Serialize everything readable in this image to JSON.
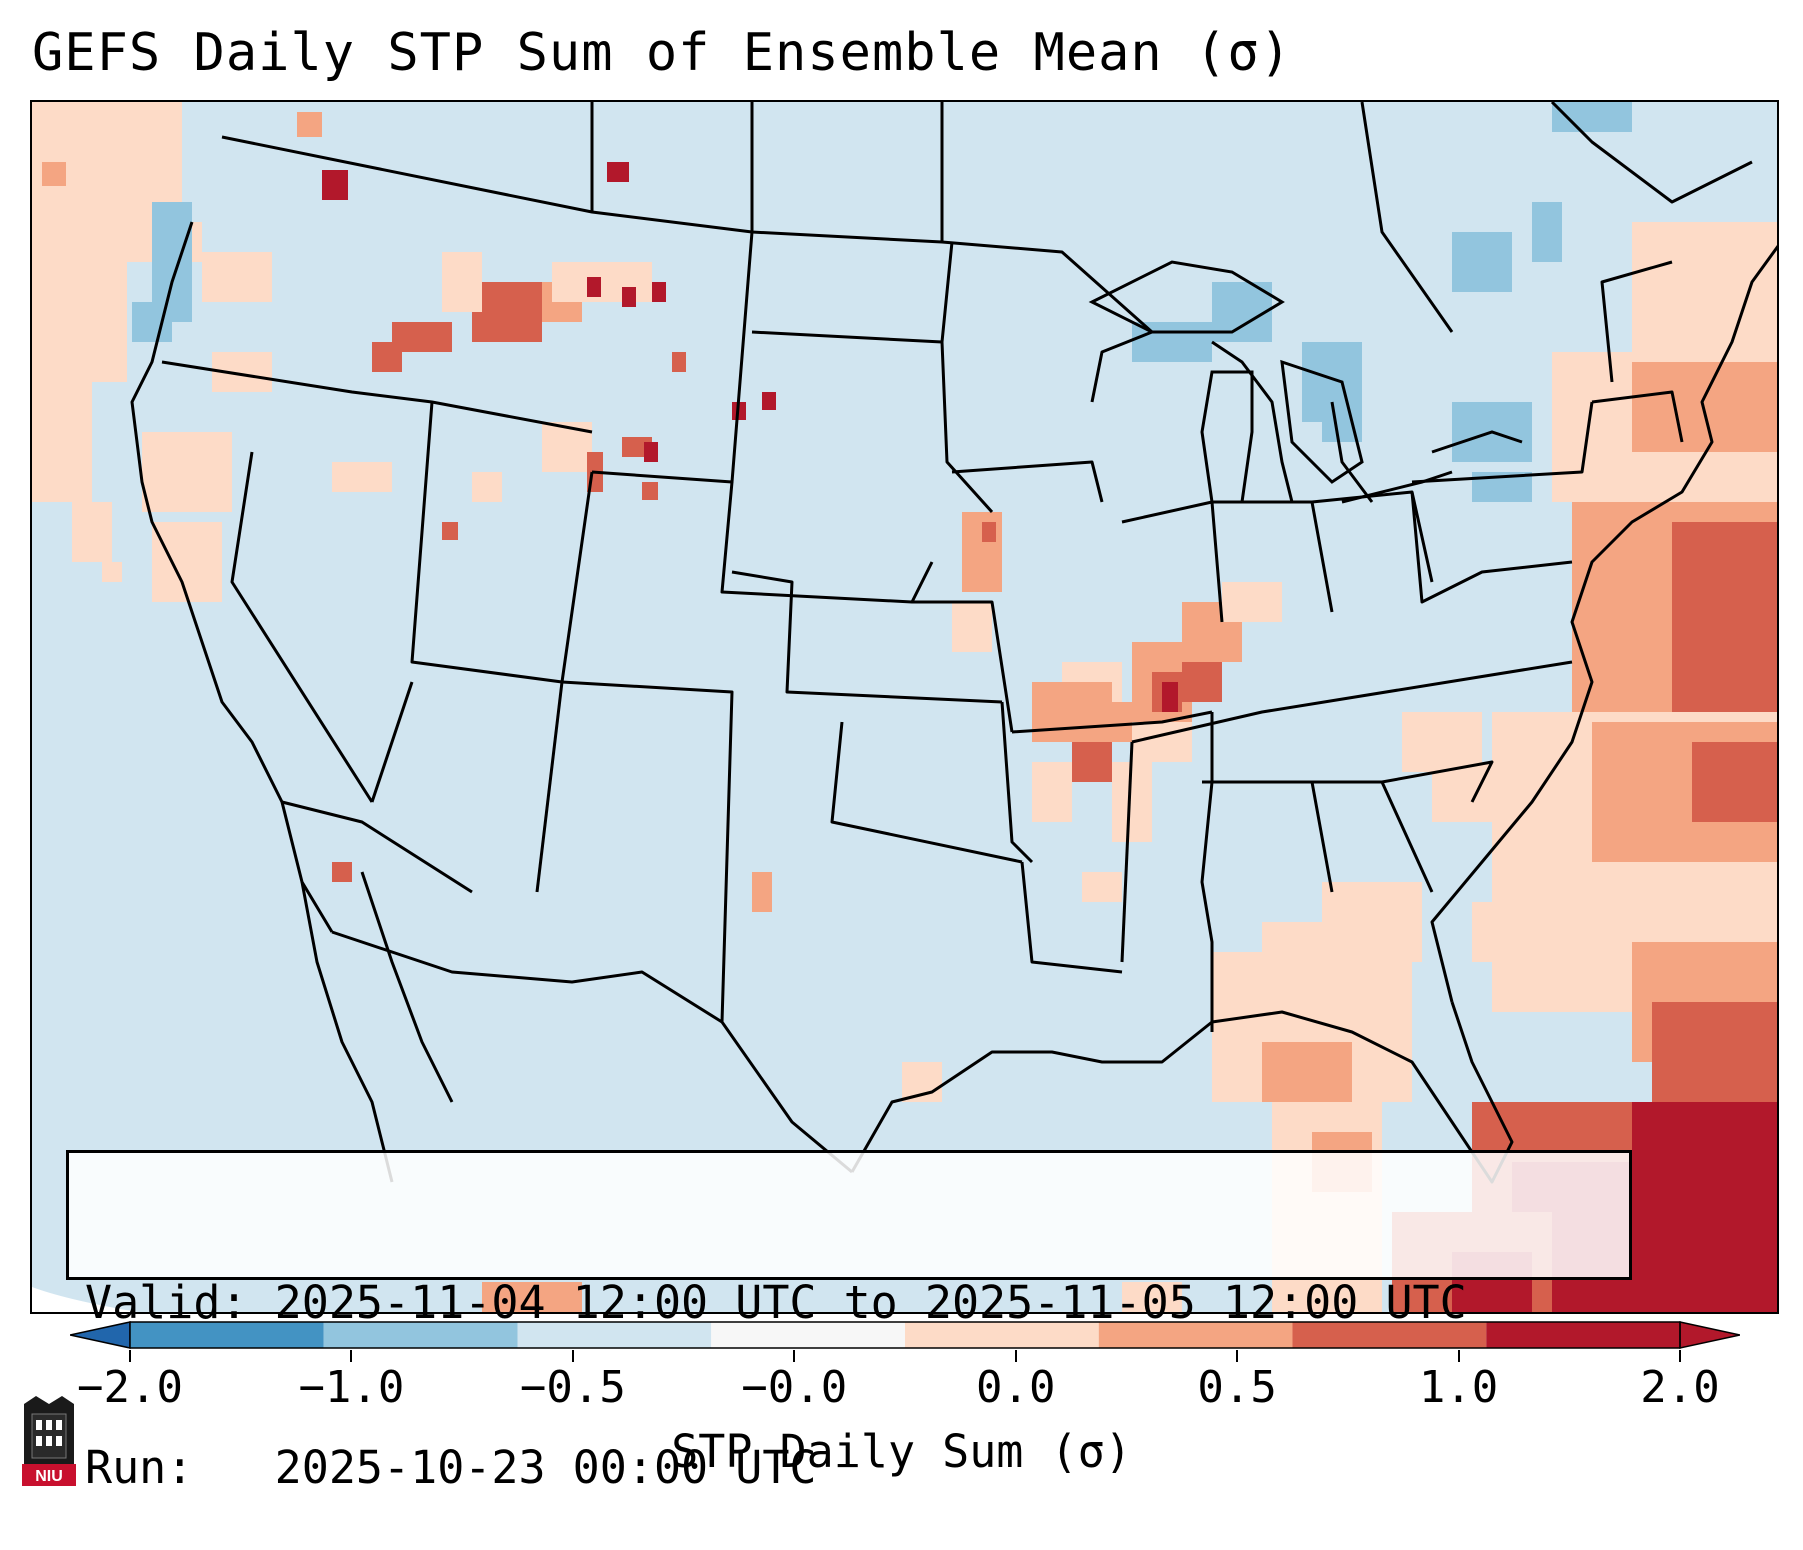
{
  "title": "GEFS Daily STP Sum of Ensemble Mean (σ)",
  "info": {
    "valid_label": "Valid:",
    "valid_value": "2025-11-04 12:00 UTC to 2025-11-05 12:00 UTC",
    "run_label": "Run:",
    "run_value": "2025-10-23 00:00 UTC"
  },
  "colorbar": {
    "label": "STP Daily Sum (σ)",
    "ticks": [
      "−2.0",
      "−1.0",
      "−0.5",
      "−0.0",
      "0.0",
      "0.5",
      "1.0",
      "2.0"
    ],
    "colors": [
      "#4393c3",
      "#92c5de",
      "#d1e5f0",
      "#f7f7f7",
      "#fddbc7",
      "#f4a582",
      "#d6604d",
      "#b2182b"
    ],
    "extend_low_color": "#2166ac",
    "extend_high_color": "#b2182b"
  },
  "map": {
    "background_color": "#d1e5f0",
    "outside_color": "#ffffff"
  },
  "logo": {
    "text": "NIU"
  }
}
